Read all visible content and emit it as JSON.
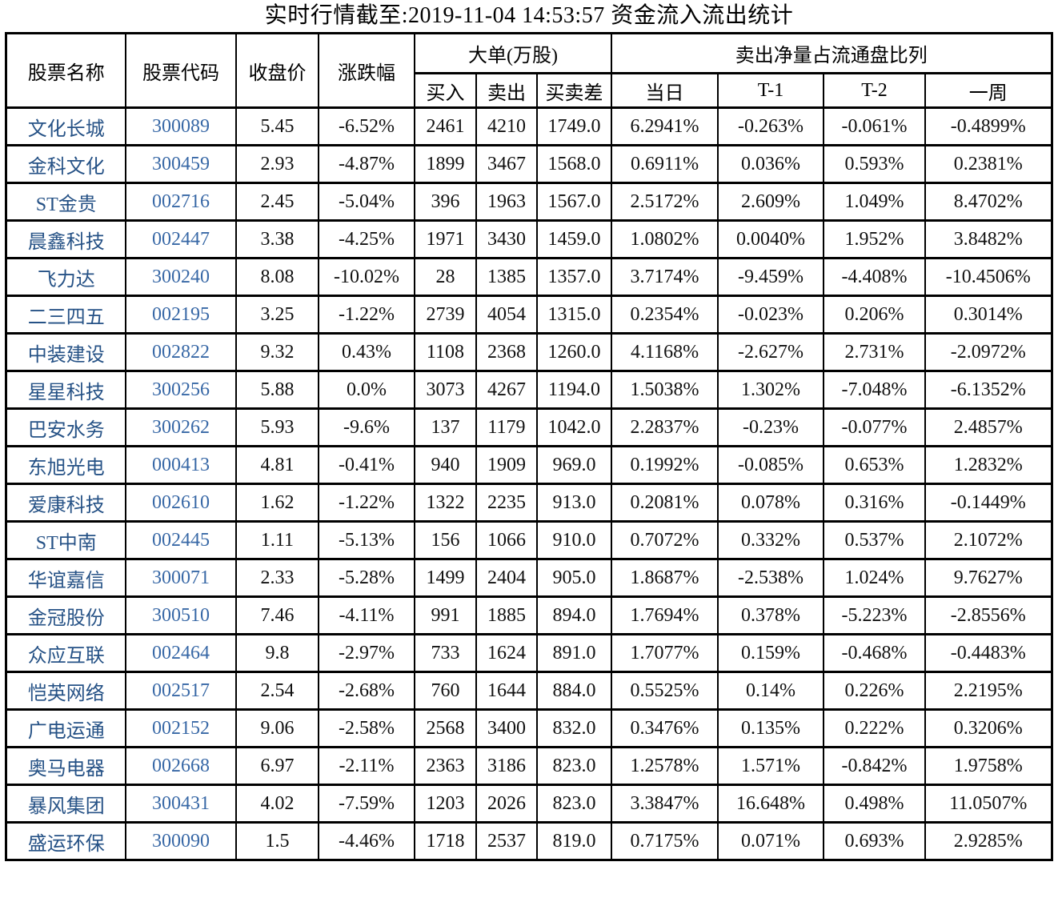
{
  "title": "实时行情截至:2019-11-04 14:53:57 资金流入流出统计",
  "colors": {
    "stock_name_text": "#265286",
    "stock_code_text": "#3868a6",
    "border": "#000000",
    "body_text": "#111111",
    "background": "#ffffff"
  },
  "chart_data": {
    "type": "table",
    "title": "实时行情截至:2019-11-04 14:53:57 资金流入流出统计",
    "group_headers": {
      "large_order": "大单(万股)",
      "net_sell_ratio": "卖出净量占流通盘比列"
    },
    "columns": [
      "股票名称",
      "股票代码",
      "收盘价",
      "涨跌幅",
      "买入",
      "卖出",
      "买卖差",
      "当日",
      "T-1",
      "T-2",
      "一周"
    ],
    "rows": [
      [
        "文化长城",
        "300089",
        "5.45",
        "-6.52%",
        "2461",
        "4210",
        "1749.0",
        "6.2941%",
        "-0.263%",
        "-0.061%",
        "-0.4899%"
      ],
      [
        "金科文化",
        "300459",
        "2.93",
        "-4.87%",
        "1899",
        "3467",
        "1568.0",
        "0.6911%",
        "0.036%",
        "0.593%",
        "0.2381%"
      ],
      [
        "ST金贵",
        "002716",
        "2.45",
        "-5.04%",
        "396",
        "1963",
        "1567.0",
        "2.5172%",
        "2.609%",
        "1.049%",
        "8.4702%"
      ],
      [
        "晨鑫科技",
        "002447",
        "3.38",
        "-4.25%",
        "1971",
        "3430",
        "1459.0",
        "1.0802%",
        "0.0040%",
        "1.952%",
        "3.8482%"
      ],
      [
        "飞力达",
        "300240",
        "8.08",
        "-10.02%",
        "28",
        "1385",
        "1357.0",
        "3.7174%",
        "-9.459%",
        "-4.408%",
        "-10.4506%"
      ],
      [
        "二三四五",
        "002195",
        "3.25",
        "-1.22%",
        "2739",
        "4054",
        "1315.0",
        "0.2354%",
        "-0.023%",
        "0.206%",
        "0.3014%"
      ],
      [
        "中装建设",
        "002822",
        "9.32",
        "0.43%",
        "1108",
        "2368",
        "1260.0",
        "4.1168%",
        "-2.627%",
        "2.731%",
        "-2.0972%"
      ],
      [
        "星星科技",
        "300256",
        "5.88",
        "0.0%",
        "3073",
        "4267",
        "1194.0",
        "1.5038%",
        "1.302%",
        "-7.048%",
        "-6.1352%"
      ],
      [
        "巴安水务",
        "300262",
        "5.93",
        "-9.6%",
        "137",
        "1179",
        "1042.0",
        "2.2837%",
        "-0.23%",
        "-0.077%",
        "2.4857%"
      ],
      [
        "东旭光电",
        "000413",
        "4.81",
        "-0.41%",
        "940",
        "1909",
        "969.0",
        "0.1992%",
        "-0.085%",
        "0.653%",
        "1.2832%"
      ],
      [
        "爱康科技",
        "002610",
        "1.62",
        "-1.22%",
        "1322",
        "2235",
        "913.0",
        "0.2081%",
        "0.078%",
        "0.316%",
        "-0.1449%"
      ],
      [
        "ST中南",
        "002445",
        "1.11",
        "-5.13%",
        "156",
        "1066",
        "910.0",
        "0.7072%",
        "0.332%",
        "0.537%",
        "2.1072%"
      ],
      [
        "华谊嘉信",
        "300071",
        "2.33",
        "-5.28%",
        "1499",
        "2404",
        "905.0",
        "1.8687%",
        "-2.538%",
        "1.024%",
        "9.7627%"
      ],
      [
        "金冠股份",
        "300510",
        "7.46",
        "-4.11%",
        "991",
        "1885",
        "894.0",
        "1.7694%",
        "0.378%",
        "-5.223%",
        "-2.8556%"
      ],
      [
        "众应互联",
        "002464",
        "9.8",
        "-2.97%",
        "733",
        "1624",
        "891.0",
        "1.7077%",
        "0.159%",
        "-0.468%",
        "-0.4483%"
      ],
      [
        "恺英网络",
        "002517",
        "2.54",
        "-2.68%",
        "760",
        "1644",
        "884.0",
        "0.5525%",
        "0.14%",
        "0.226%",
        "2.2195%"
      ],
      [
        "广电运通",
        "002152",
        "9.06",
        "-2.58%",
        "2568",
        "3400",
        "832.0",
        "0.3476%",
        "0.135%",
        "0.222%",
        "0.3206%"
      ],
      [
        "奥马电器",
        "002668",
        "6.97",
        "-2.11%",
        "2363",
        "3186",
        "823.0",
        "1.2578%",
        "1.571%",
        "-0.842%",
        "1.9758%"
      ],
      [
        "暴风集团",
        "300431",
        "4.02",
        "-7.59%",
        "1203",
        "2026",
        "823.0",
        "3.3847%",
        "16.648%",
        "0.498%",
        "11.0507%"
      ],
      [
        "盛运环保",
        "300090",
        "1.5",
        "-4.46%",
        "1718",
        "2537",
        "819.0",
        "0.7175%",
        "0.071%",
        "0.693%",
        "2.9285%"
      ]
    ]
  }
}
